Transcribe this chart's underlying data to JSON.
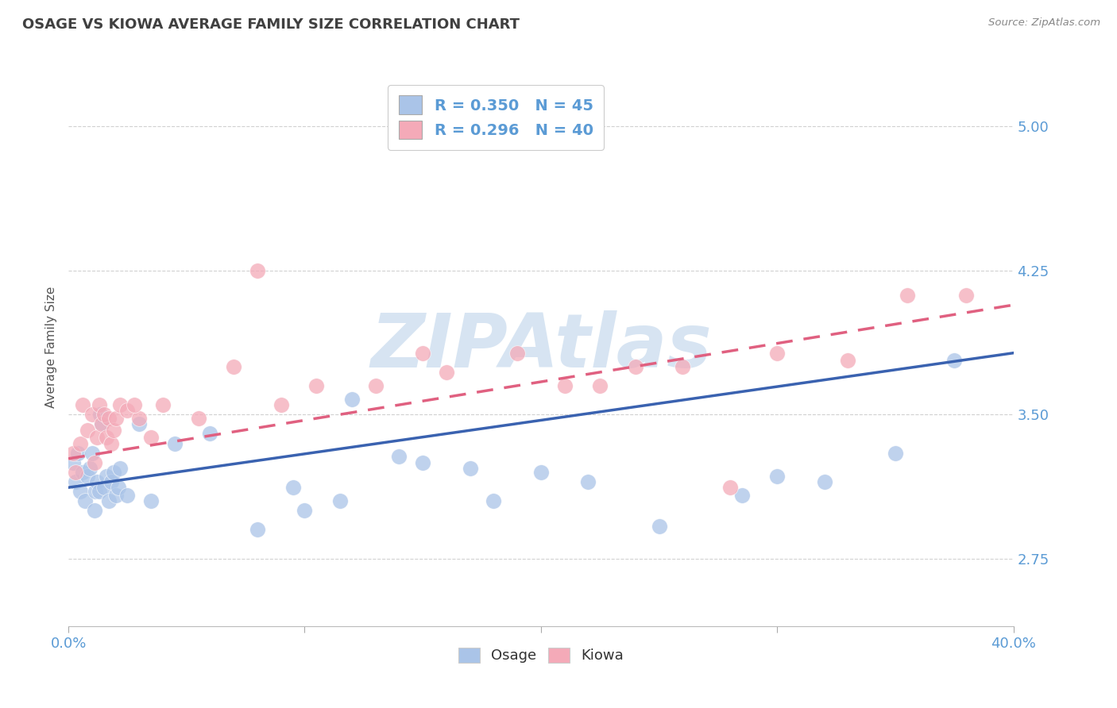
{
  "title": "OSAGE VS KIOWA AVERAGE FAMILY SIZE CORRELATION CHART",
  "source": "Source: ZipAtlas.com",
  "ylabel": "Average Family Size",
  "yticks": [
    2.75,
    3.5,
    4.25,
    5.0
  ],
  "xlim": [
    0.0,
    40.0
  ],
  "ylim": [
    2.4,
    5.3
  ],
  "legend_line1": "R = 0.350   N = 45",
  "legend_line2": "R = 0.296   N = 40",
  "osage_color": "#aac4e8",
  "kiowa_color": "#f4aab8",
  "osage_line_color": "#3a62b0",
  "kiowa_line_color": "#e06080",
  "watermark_text": "ZIPAtlas",
  "watermark_color": "#d0e0f0",
  "background_color": "#ffffff",
  "grid_color": "#cccccc",
  "axis_color": "#5b9bd5",
  "title_color": "#404040",
  "source_color": "#888888",
  "osage_line": {
    "x0": 0.0,
    "x1": 40.0,
    "y0": 3.12,
    "y1": 3.82
  },
  "kiowa_line": {
    "x0": 0.0,
    "x1": 40.0,
    "y0": 3.27,
    "y1": 4.07
  },
  "osage_x": [
    0.2,
    0.3,
    0.4,
    0.5,
    0.6,
    0.7,
    0.8,
    0.9,
    1.0,
    1.1,
    1.15,
    1.2,
    1.3,
    1.35,
    1.4,
    1.5,
    1.6,
    1.7,
    1.8,
    1.9,
    2.0,
    2.1,
    2.2,
    2.5,
    3.0,
    3.5,
    4.5,
    6.0,
    8.0,
    9.5,
    10.0,
    11.5,
    14.0,
    17.0,
    20.0,
    22.0,
    25.0,
    28.5,
    32.0,
    35.0,
    37.5,
    12.0,
    15.0,
    18.0,
    30.0
  ],
  "osage_y": [
    3.25,
    3.15,
    3.3,
    3.1,
    3.2,
    3.05,
    3.18,
    3.22,
    3.3,
    3.0,
    3.1,
    3.15,
    3.1,
    3.5,
    3.45,
    3.12,
    3.18,
    3.05,
    3.15,
    3.2,
    3.08,
    3.12,
    3.22,
    3.08,
    3.45,
    3.05,
    3.35,
    3.4,
    2.9,
    3.12,
    3.0,
    3.05,
    3.28,
    3.22,
    3.2,
    3.15,
    2.92,
    3.08,
    3.15,
    3.3,
    3.78,
    3.58,
    3.25,
    3.05,
    3.18
  ],
  "kiowa_x": [
    0.2,
    0.3,
    0.5,
    0.6,
    0.8,
    1.0,
    1.1,
    1.2,
    1.3,
    1.4,
    1.5,
    1.6,
    1.7,
    1.8,
    1.9,
    2.0,
    2.2,
    2.5,
    3.0,
    4.0,
    5.5,
    7.0,
    10.5,
    13.0,
    16.0,
    19.0,
    22.5,
    26.0,
    30.0,
    33.0,
    35.5,
    38.0,
    9.0,
    21.0,
    3.5,
    2.8,
    15.0,
    24.0,
    8.0,
    28.0
  ],
  "kiowa_y": [
    3.3,
    3.2,
    3.35,
    3.55,
    3.42,
    3.5,
    3.25,
    3.38,
    3.55,
    3.45,
    3.5,
    3.38,
    3.48,
    3.35,
    3.42,
    3.48,
    3.55,
    3.52,
    3.48,
    3.55,
    3.48,
    3.75,
    3.65,
    3.65,
    3.72,
    3.82,
    3.65,
    3.75,
    3.82,
    3.78,
    4.12,
    4.12,
    3.55,
    3.65,
    3.38,
    3.55,
    3.82,
    3.75,
    4.25,
    3.12
  ]
}
